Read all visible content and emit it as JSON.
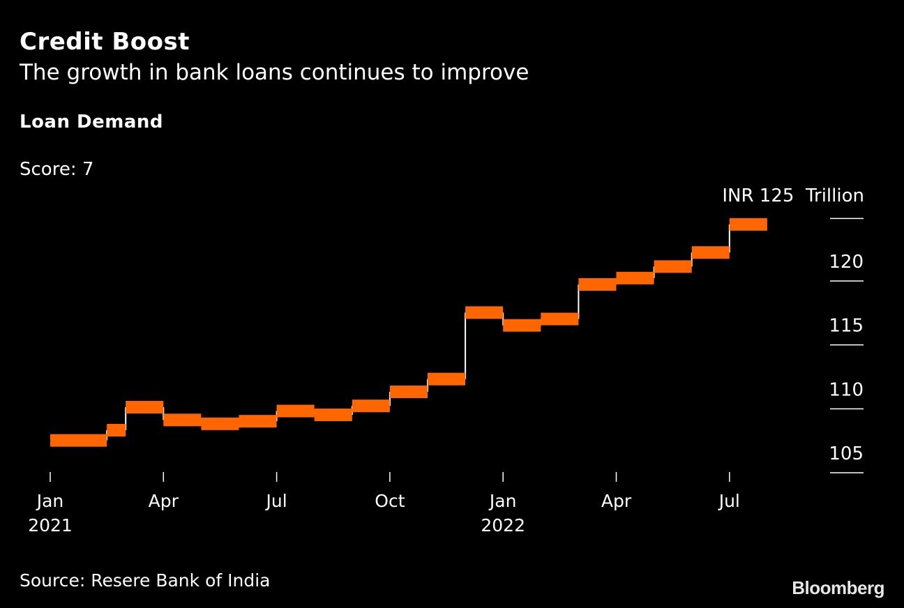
{
  "header": {
    "title": "Credit Boost",
    "subtitle": "The growth in bank loans continues to improve"
  },
  "chart_section": {
    "label": "Loan Demand",
    "score": "Score: 7",
    "unit_label": "INR 125  Trillion"
  },
  "footer": {
    "source": "Source: Resere Bank of India",
    "brand": "Bloomberg"
  },
  "colors": {
    "background": "#000000",
    "step_fill": "#ff6600",
    "connector": "#ffffff",
    "text": "#ffffff"
  },
  "chart_data": {
    "type": "line",
    "style": "step",
    "x_unit": "month",
    "x_ticks": [
      {
        "date": "2021-01",
        "label": "Jan",
        "sublabel": "2021"
      },
      {
        "date": "2021-04",
        "label": "Apr",
        "sublabel": ""
      },
      {
        "date": "2021-07",
        "label": "Jul",
        "sublabel": ""
      },
      {
        "date": "2021-10",
        "label": "Oct",
        "sublabel": ""
      },
      {
        "date": "2022-01",
        "label": "Jan",
        "sublabel": "2022"
      },
      {
        "date": "2022-04",
        "label": "Apr",
        "sublabel": ""
      },
      {
        "date": "2022-07",
        "label": "Jul",
        "sublabel": ""
      }
    ],
    "y_ticks": [
      105,
      110,
      115,
      120
    ],
    "ylim": [
      103.5,
      124
    ],
    "xlim": [
      "2021-01",
      "2022-08"
    ],
    "series": [
      {
        "points": [
          {
            "start": "2021-01-01",
            "end": "2021-02-15",
            "value": 106.0
          },
          {
            "start": "2021-02-15",
            "end": "2021-03-01",
            "value": 106.8
          },
          {
            "start": "2021-03-01",
            "end": "2021-04-01",
            "value": 108.6
          },
          {
            "start": "2021-04-01",
            "end": "2021-05-01",
            "value": 107.6
          },
          {
            "start": "2021-05-01",
            "end": "2021-06-01",
            "value": 107.3
          },
          {
            "start": "2021-06-01",
            "end": "2021-07-01",
            "value": 107.5
          },
          {
            "start": "2021-07-01",
            "end": "2021-08-01",
            "value": 108.3
          },
          {
            "start": "2021-08-01",
            "end": "2021-09-01",
            "value": 108.0
          },
          {
            "start": "2021-09-01",
            "end": "2021-10-01",
            "value": 108.7
          },
          {
            "start": "2021-10-01",
            "end": "2021-11-01",
            "value": 109.8
          },
          {
            "start": "2021-11-01",
            "end": "2021-12-01",
            "value": 110.8
          },
          {
            "start": "2021-12-01",
            "end": "2022-01-01",
            "value": 116.0
          },
          {
            "start": "2022-01-01",
            "end": "2022-02-01",
            "value": 115.0
          },
          {
            "start": "2022-02-01",
            "end": "2022-03-01",
            "value": 115.5
          },
          {
            "start": "2022-03-01",
            "end": "2022-04-01",
            "value": 118.2
          },
          {
            "start": "2022-04-01",
            "end": "2022-05-01",
            "value": 118.7
          },
          {
            "start": "2022-05-01",
            "end": "2022-06-01",
            "value": 119.6
          },
          {
            "start": "2022-06-01",
            "end": "2022-07-01",
            "value": 120.7
          },
          {
            "start": "2022-07-01",
            "end": "2022-08-01",
            "value": 122.9
          }
        ]
      }
    ]
  }
}
